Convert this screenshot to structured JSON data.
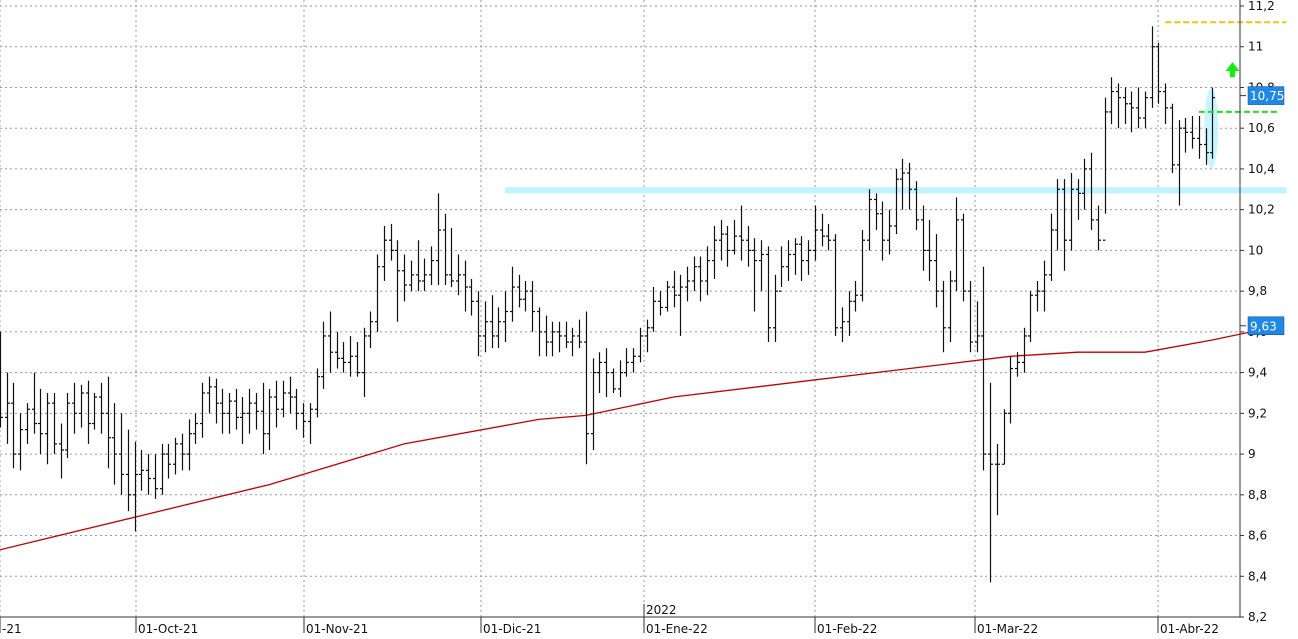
{
  "chart_data": {
    "type": "ohlc",
    "ylim": [
      8.2,
      11.2
    ],
    "y_ticks": [
      "11,2",
      "11",
      "10,8",
      "10,6",
      "10,4",
      "10,2",
      "10",
      "9,8",
      "9,6",
      "9,4",
      "9,2",
      "9",
      "8,8",
      "8,6",
      "8,4",
      "8,2"
    ],
    "y_tick_values": [
      11.2,
      11.0,
      10.8,
      10.6,
      10.4,
      10.2,
      10.0,
      9.8,
      9.6,
      9.4,
      9.2,
      9.0,
      8.8,
      8.6,
      8.4,
      8.2
    ],
    "x_ticks": [
      {
        "label": "-21",
        "date": "2021-09-01"
      },
      {
        "label": "01-Oct-21",
        "date": "2021-10-01"
      },
      {
        "label": "01-Nov-21",
        "date": "2021-11-01"
      },
      {
        "label": "01-Dic-21",
        "date": "2021-12-01"
      },
      {
        "label": "01-Ene-22",
        "date": "2022-01-03"
      },
      {
        "label": "01-Feb-22",
        "date": "2022-02-01"
      },
      {
        "label": "01-Mar-22",
        "date": "2022-03-01"
      },
      {
        "label": "01-Abr-22",
        "date": "2022-04-01"
      }
    ],
    "year_label": "2022",
    "grid": true,
    "last_price_label": "10,75",
    "ma_label": "9,63",
    "bars": [
      [
        9.32,
        9.6,
        9.13,
        9.18
      ],
      [
        9.18,
        9.4,
        9.05,
        9.25
      ],
      [
        9.25,
        9.35,
        8.93,
        9.0
      ],
      [
        9.0,
        9.2,
        8.92,
        9.12
      ],
      [
        9.12,
        9.25,
        9.05,
        9.22
      ],
      [
        9.22,
        9.4,
        9.1,
        9.15
      ],
      [
        9.15,
        9.32,
        9.0,
        9.1
      ],
      [
        9.1,
        9.3,
        8.95,
        9.25
      ],
      [
        9.25,
        9.3,
        9.0,
        9.05
      ],
      [
        9.05,
        9.15,
        8.88,
        9.02
      ],
      [
        9.02,
        9.3,
        8.98,
        9.25
      ],
      [
        9.25,
        9.35,
        9.1,
        9.2
      ],
      [
        9.2,
        9.34,
        9.13,
        9.3
      ],
      [
        9.3,
        9.36,
        9.05,
        9.15
      ],
      [
        9.15,
        9.3,
        9.12,
        9.28
      ],
      [
        9.28,
        9.35,
        9.1,
        9.2
      ],
      [
        9.2,
        9.38,
        8.93,
        9.08
      ],
      [
        9.08,
        9.25,
        8.85,
        9.0
      ],
      [
        9.0,
        9.2,
        8.8,
        8.9
      ],
      [
        8.9,
        9.12,
        8.72,
        8.8
      ],
      [
        8.8,
        9.06,
        8.62,
        8.9
      ],
      [
        8.9,
        9.02,
        8.82,
        8.92
      ],
      [
        8.92,
        9.0,
        8.8,
        8.88
      ],
      [
        8.88,
        9.0,
        8.78,
        8.83
      ],
      [
        8.83,
        9.05,
        8.8,
        9.0
      ],
      [
        9.0,
        9.05,
        8.88,
        8.95
      ],
      [
        8.95,
        9.08,
        8.9,
        9.05
      ],
      [
        9.05,
        9.1,
        8.92,
        9.0
      ],
      [
        9.0,
        9.17,
        8.92,
        9.1
      ],
      [
        9.1,
        9.2,
        9.05,
        9.15
      ],
      [
        9.15,
        9.35,
        9.08,
        9.3
      ],
      [
        9.3,
        9.38,
        9.2,
        9.33
      ],
      [
        9.33,
        9.37,
        9.15,
        9.25
      ],
      [
        9.25,
        9.32,
        9.1,
        9.2
      ],
      [
        9.2,
        9.3,
        9.1,
        9.26
      ],
      [
        9.26,
        9.32,
        9.12,
        9.18
      ],
      [
        9.18,
        9.28,
        9.05,
        9.2
      ],
      [
        9.2,
        9.32,
        9.1,
        9.25
      ],
      [
        9.25,
        9.3,
        9.12,
        9.21
      ],
      [
        9.21,
        9.35,
        9.0,
        9.1
      ],
      [
        9.1,
        9.32,
        9.02,
        9.28
      ],
      [
        9.28,
        9.36,
        9.13,
        9.22
      ],
      [
        9.22,
        9.36,
        9.18,
        9.3
      ],
      [
        9.3,
        9.38,
        9.2,
        9.28
      ],
      [
        9.28,
        9.32,
        9.12,
        9.2
      ],
      [
        9.2,
        9.25,
        9.08,
        9.16
      ],
      [
        9.16,
        9.25,
        9.05,
        9.22
      ],
      [
        9.22,
        9.42,
        9.18,
        9.38
      ],
      [
        9.38,
        9.65,
        9.32,
        9.58
      ],
      [
        9.58,
        9.7,
        9.4,
        9.5
      ],
      [
        9.5,
        9.6,
        9.42,
        9.47
      ],
      [
        9.47,
        9.55,
        9.4,
        9.45
      ],
      [
        9.45,
        9.58,
        9.38,
        9.48
      ],
      [
        9.48,
        9.55,
        9.38,
        9.4
      ],
      [
        9.4,
        9.62,
        9.28,
        9.58
      ],
      [
        9.58,
        9.7,
        9.52,
        9.65
      ],
      [
        9.65,
        9.98,
        9.6,
        9.92
      ],
      [
        9.92,
        10.12,
        9.85,
        10.05
      ],
      [
        10.05,
        10.13,
        9.95,
        10.0
      ],
      [
        10.0,
        10.05,
        9.65,
        9.9
      ],
      [
        9.9,
        9.98,
        9.75,
        9.83
      ],
      [
        9.83,
        9.95,
        9.8,
        9.88
      ],
      [
        9.88,
        10.05,
        9.8,
        9.85
      ],
      [
        9.85,
        9.96,
        9.8,
        9.88
      ],
      [
        9.88,
        10.02,
        9.83,
        9.95
      ],
      [
        9.95,
        10.28,
        9.83,
        10.1
      ],
      [
        10.1,
        10.18,
        9.83,
        9.88
      ],
      [
        9.88,
        10.11,
        9.82,
        9.85
      ],
      [
        9.85,
        9.98,
        9.78,
        9.88
      ],
      [
        9.88,
        9.95,
        9.7,
        9.82
      ],
      [
        9.82,
        9.86,
        9.68,
        9.75
      ],
      [
        9.75,
        9.8,
        9.48,
        9.58
      ],
      [
        9.58,
        9.75,
        9.5,
        9.65
      ],
      [
        9.65,
        9.78,
        9.52,
        9.58
      ],
      [
        9.58,
        9.72,
        9.52,
        9.65
      ],
      [
        9.65,
        9.8,
        9.55,
        9.7
      ],
      [
        9.7,
        9.92,
        9.65,
        9.82
      ],
      [
        9.82,
        9.88,
        9.72,
        9.76
      ],
      [
        9.76,
        9.85,
        9.7,
        9.8
      ],
      [
        9.8,
        9.85,
        9.6,
        9.7
      ],
      [
        9.7,
        9.72,
        9.48,
        9.6
      ],
      [
        9.6,
        9.68,
        9.48,
        9.55
      ],
      [
        9.55,
        9.65,
        9.48,
        9.6
      ],
      [
        9.6,
        9.65,
        9.5,
        9.58
      ],
      [
        9.58,
        9.65,
        9.52,
        9.55
      ],
      [
        9.55,
        9.62,
        9.48,
        9.58
      ],
      [
        9.58,
        9.66,
        9.52,
        9.55
      ],
      [
        9.55,
        9.7,
        8.95,
        9.1
      ],
      [
        9.1,
        9.47,
        9.02,
        9.4
      ],
      [
        9.4,
        9.5,
        9.3,
        9.45
      ],
      [
        9.45,
        9.52,
        9.28,
        9.4
      ],
      [
        9.4,
        9.42,
        9.3,
        9.32
      ],
      [
        9.32,
        9.46,
        9.28,
        9.4
      ],
      [
        9.4,
        9.52,
        9.38,
        9.45
      ],
      [
        9.45,
        9.52,
        9.4,
        9.48
      ],
      [
        9.48,
        9.62,
        9.45,
        9.58
      ],
      [
        9.58,
        9.66,
        9.5,
        9.62
      ],
      [
        9.62,
        9.82,
        9.6,
        9.75
      ],
      [
        9.75,
        9.8,
        9.68,
        9.72
      ],
      [
        9.72,
        9.85,
        9.7,
        9.82
      ],
      [
        9.82,
        9.9,
        9.72,
        9.78
      ],
      [
        9.78,
        9.88,
        9.58,
        9.82
      ],
      [
        9.82,
        9.92,
        9.75,
        9.85
      ],
      [
        9.85,
        9.97,
        9.8,
        9.92
      ],
      [
        9.92,
        9.97,
        9.75,
        9.85
      ],
      [
        9.85,
        10.02,
        9.78,
        9.95
      ],
      [
        9.95,
        10.12,
        9.86,
        10.05
      ],
      [
        10.05,
        10.15,
        9.95,
        10.08
      ],
      [
        10.08,
        10.12,
        9.92,
        10.0
      ],
      [
        10.0,
        10.15,
        9.98,
        10.07
      ],
      [
        10.07,
        10.22,
        9.95,
        10.05
      ],
      [
        10.05,
        10.12,
        9.92,
        10.0
      ],
      [
        10.0,
        10.06,
        9.7,
        9.95
      ],
      [
        9.95,
        10.05,
        9.8,
        9.98
      ],
      [
        9.98,
        10.02,
        9.55,
        9.62
      ],
      [
        9.62,
        9.88,
        9.55,
        9.8
      ],
      [
        9.8,
        10.02,
        9.82,
        9.92
      ],
      [
        9.92,
        10.05,
        9.85,
        9.98
      ],
      [
        9.98,
        10.06,
        9.88,
        10.03
      ],
      [
        10.03,
        10.07,
        9.85,
        9.95
      ],
      [
        9.95,
        10.05,
        9.88,
        10.0
      ],
      [
        10.0,
        10.22,
        9.95,
        10.1
      ],
      [
        10.1,
        10.18,
        10.02,
        10.07
      ],
      [
        10.07,
        10.13,
        10.0,
        10.05
      ],
      [
        10.05,
        10.08,
        9.58,
        9.62
      ],
      [
        9.62,
        9.72,
        9.55,
        9.65
      ],
      [
        9.65,
        9.8,
        9.58,
        9.75
      ],
      [
        9.75,
        9.85,
        9.7,
        9.78
      ],
      [
        9.78,
        10.1,
        9.75,
        10.05
      ],
      [
        10.05,
        10.3,
        10.0,
        10.25
      ],
      [
        10.25,
        10.28,
        10.1,
        10.18
      ],
      [
        10.18,
        10.24,
        9.95,
        10.05
      ],
      [
        10.05,
        10.2,
        9.98,
        10.12
      ],
      [
        10.12,
        10.4,
        10.08,
        10.35
      ],
      [
        10.35,
        10.45,
        10.2,
        10.38
      ],
      [
        10.38,
        10.43,
        10.2,
        10.3
      ],
      [
        10.3,
        10.34,
        10.1,
        10.15
      ],
      [
        10.15,
        10.22,
        9.9,
        10.0
      ],
      [
        10.0,
        10.15,
        9.85,
        9.95
      ],
      [
        9.95,
        10.08,
        9.72,
        9.8
      ],
      [
        9.8,
        9.85,
        9.5,
        9.62
      ],
      [
        9.62,
        9.9,
        9.55,
        9.85
      ],
      [
        9.85,
        10.26,
        9.8,
        10.15
      ],
      [
        10.15,
        10.18,
        9.75,
        9.8
      ],
      [
        9.8,
        9.85,
        9.5,
        9.55
      ],
      [
        9.55,
        9.75,
        9.5,
        9.58
      ],
      [
        9.58,
        9.92,
        8.92,
        9.0
      ],
      [
        9.0,
        9.35,
        8.37,
        8.95
      ],
      [
        8.95,
        9.05,
        8.7,
        8.95
      ],
      [
        8.95,
        9.22,
        8.95,
        9.2
      ],
      [
        9.2,
        9.48,
        9.15,
        9.42
      ],
      [
        9.42,
        9.5,
        9.38,
        9.45
      ],
      [
        9.45,
        9.62,
        9.4,
        9.58
      ],
      [
        9.58,
        9.8,
        9.55,
        9.78
      ],
      [
        9.78,
        9.85,
        9.7,
        9.8
      ],
      [
        9.8,
        9.95,
        9.7,
        9.88
      ],
      [
        9.88,
        10.18,
        9.85,
        10.1
      ],
      [
        10.1,
        10.35,
        10.0,
        10.3
      ],
      [
        10.3,
        10.35,
        9.9,
        10.05
      ],
      [
        10.05,
        10.38,
        10.0,
        10.3
      ],
      [
        10.3,
        10.35,
        10.15,
        10.28
      ],
      [
        10.28,
        10.45,
        10.2,
        10.4
      ],
      [
        10.4,
        10.48,
        10.1,
        10.15
      ],
      [
        10.15,
        10.22,
        10.0,
        10.05
      ],
      [
        10.05,
        10.75,
        10.18,
        10.68
      ],
      [
        10.68,
        10.85,
        10.62,
        10.78
      ],
      [
        10.78,
        10.82,
        10.6,
        10.75
      ],
      [
        10.75,
        10.8,
        10.62,
        10.72
      ],
      [
        10.72,
        10.78,
        10.58,
        10.7
      ],
      [
        10.7,
        10.8,
        10.6,
        10.65
      ],
      [
        10.65,
        10.78,
        10.6,
        10.75
      ],
      [
        10.75,
        11.1,
        10.7,
        11.0
      ],
      [
        11.0,
        11.02,
        10.72,
        10.78
      ],
      [
        10.78,
        10.82,
        10.62,
        10.7
      ],
      [
        10.7,
        10.72,
        10.38,
        10.42
      ],
      [
        10.42,
        10.64,
        10.22,
        10.6
      ],
      [
        10.6,
        10.65,
        10.48,
        10.58
      ],
      [
        10.58,
        10.66,
        10.5,
        10.55
      ],
      [
        10.55,
        10.66,
        10.45,
        10.52
      ],
      [
        10.52,
        10.6,
        10.42,
        10.48
      ],
      [
        10.48,
        10.8,
        10.45,
        10.75
      ]
    ],
    "ma_series": {
      "x": [
        0,
        20,
        40,
        60,
        80,
        87,
        100,
        120,
        140,
        150,
        160,
        170,
        180,
        190
      ],
      "values": [
        8.53,
        8.69,
        8.85,
        9.05,
        9.17,
        9.19,
        9.28,
        9.36,
        9.44,
        9.48,
        9.5,
        9.5,
        9.56,
        9.63
      ]
    },
    "resistance_zone": {
      "x_from": 75,
      "x_to": 191,
      "y_low": 10.28,
      "y_high": 10.31
    },
    "lines": [
      {
        "y": 11.12,
        "x_from": 173,
        "x_to": 191,
        "color": "#f4c20d"
      },
      {
        "y": 10.68,
        "x_from": 178,
        "x_to": 190,
        "color": "#22dd22"
      }
    ],
    "colors": {
      "bars": "#111111",
      "ma": "#c00000",
      "zone": "#bff3ff",
      "badge": "#1e88e5",
      "arrow": "#11ee11",
      "grid": "#9a9a9a"
    }
  }
}
